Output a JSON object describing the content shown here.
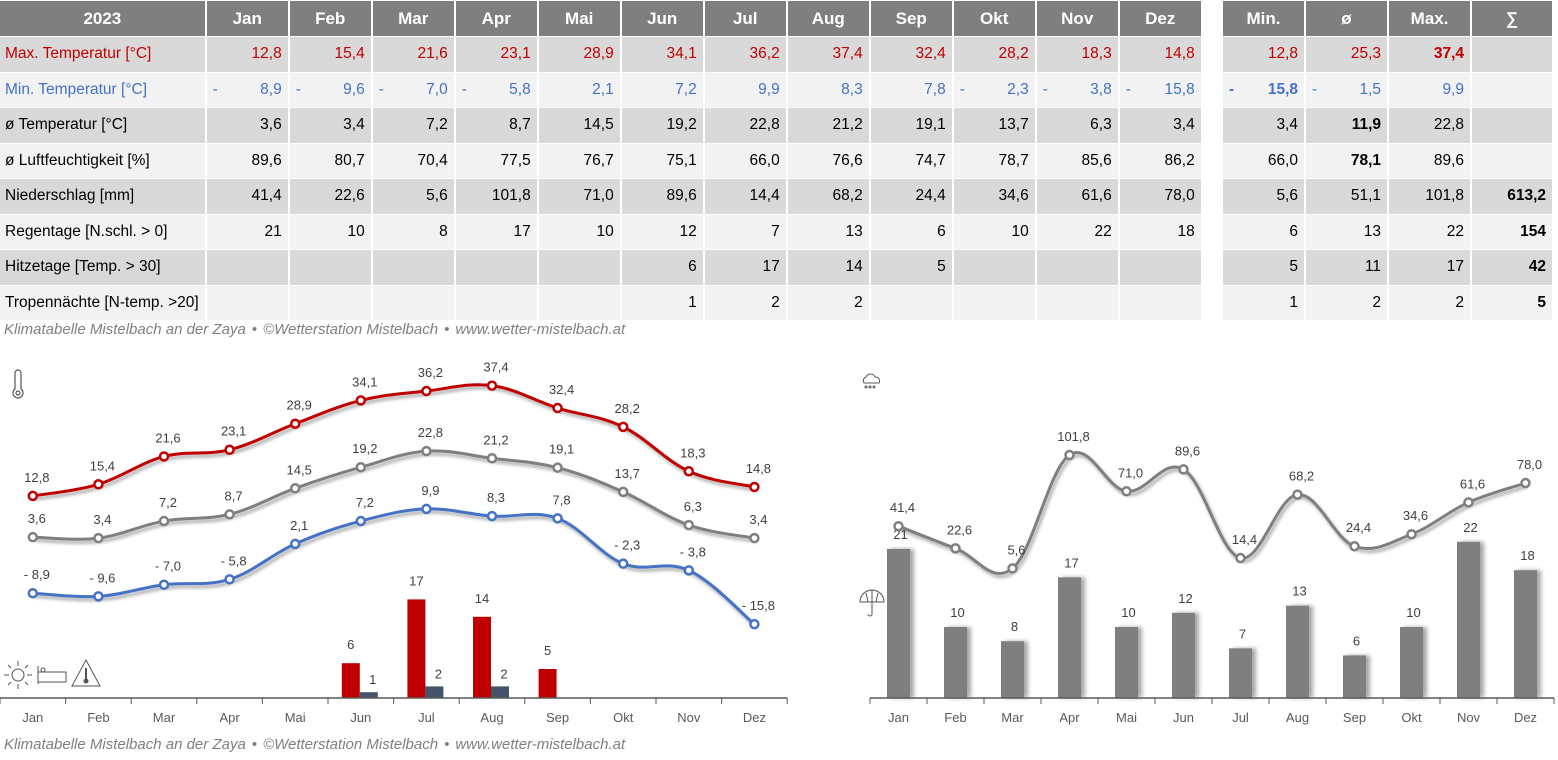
{
  "table": {
    "year": "2023",
    "months": [
      "Jan",
      "Feb",
      "Mar",
      "Apr",
      "Mai",
      "Jun",
      "Jul",
      "Aug",
      "Sep",
      "Okt",
      "Nov",
      "Dez"
    ],
    "summary_headers": [
      "Min.",
      "ø",
      "Max.",
      "∑"
    ],
    "rows": [
      {
        "label": "Max. Temperatur [°C]",
        "style": "red",
        "values": [
          "12,8",
          "15,4",
          "21,6",
          "23,1",
          "28,9",
          "34,1",
          "36,2",
          "37,4",
          "32,4",
          "28,2",
          "18,3",
          "14,8"
        ],
        "neg": [
          false,
          false,
          false,
          false,
          false,
          false,
          false,
          false,
          false,
          false,
          false,
          false
        ],
        "summary": [
          "12,8",
          "25,3",
          "37,4",
          ""
        ],
        "summary_neg": [
          false,
          false,
          false,
          false
        ],
        "summary_bold": [
          false,
          false,
          true,
          false
        ]
      },
      {
        "label": "Min. Temperatur [°C]",
        "style": "blue",
        "values": [
          "8,9",
          "9,6",
          "7,0",
          "5,8",
          "2,1",
          "7,2",
          "9,9",
          "8,3",
          "7,8",
          "2,3",
          "3,8",
          "15,8"
        ],
        "neg": [
          true,
          true,
          true,
          true,
          false,
          false,
          false,
          false,
          false,
          true,
          true,
          true
        ],
        "summary": [
          "15,8",
          "1,5",
          "9,9",
          ""
        ],
        "summary_neg": [
          true,
          true,
          false,
          false
        ],
        "summary_bold": [
          true,
          false,
          false,
          false
        ]
      },
      {
        "label": "ø Temperatur [°C]",
        "style": "",
        "values": [
          "3,6",
          "3,4",
          "7,2",
          "8,7",
          "14,5",
          "19,2",
          "22,8",
          "21,2",
          "19,1",
          "13,7",
          "6,3",
          "3,4"
        ],
        "neg": [
          false,
          false,
          false,
          false,
          false,
          false,
          false,
          false,
          false,
          false,
          false,
          false
        ],
        "summary": [
          "3,4",
          "11,9",
          "22,8",
          ""
        ],
        "summary_neg": [
          false,
          false,
          false,
          false
        ],
        "summary_bold": [
          false,
          true,
          false,
          false
        ]
      },
      {
        "label": "ø Luftfeuchtigkeit [%]",
        "style": "",
        "values": [
          "89,6",
          "80,7",
          "70,4",
          "77,5",
          "76,7",
          "75,1",
          "66,0",
          "76,6",
          "74,7",
          "78,7",
          "85,6",
          "86,2"
        ],
        "neg": [
          false,
          false,
          false,
          false,
          false,
          false,
          false,
          false,
          false,
          false,
          false,
          false
        ],
        "summary": [
          "66,0",
          "78,1",
          "89,6",
          ""
        ],
        "summary_neg": [
          false,
          false,
          false,
          false
        ],
        "summary_bold": [
          false,
          true,
          false,
          false
        ]
      },
      {
        "label": "Niederschlag [mm]",
        "style": "",
        "values": [
          "41,4",
          "22,6",
          "5,6",
          "101,8",
          "71,0",
          "89,6",
          "14,4",
          "68,2",
          "24,4",
          "34,6",
          "61,6",
          "78,0"
        ],
        "neg": [
          false,
          false,
          false,
          false,
          false,
          false,
          false,
          false,
          false,
          false,
          false,
          false
        ],
        "summary": [
          "5,6",
          "51,1",
          "101,8",
          "613,2"
        ],
        "summary_neg": [
          false,
          false,
          false,
          false
        ],
        "summary_bold": [
          false,
          false,
          false,
          true
        ]
      },
      {
        "label": "Regentage [N.schl. > 0]",
        "style": "",
        "values": [
          "21",
          "10",
          "8",
          "17",
          "10",
          "12",
          "7",
          "13",
          "6",
          "10",
          "22",
          "18"
        ],
        "neg": [
          false,
          false,
          false,
          false,
          false,
          false,
          false,
          false,
          false,
          false,
          false,
          false
        ],
        "summary": [
          "6",
          "13",
          "22",
          "154"
        ],
        "summary_neg": [
          false,
          false,
          false,
          false
        ],
        "summary_bold": [
          false,
          false,
          false,
          true
        ]
      },
      {
        "label": "Hitzetage [Temp. > 30]",
        "style": "",
        "values": [
          "",
          "",
          "",
          "",
          "",
          "6",
          "17",
          "14",
          "5",
          "",
          "",
          ""
        ],
        "neg": [
          false,
          false,
          false,
          false,
          false,
          false,
          false,
          false,
          false,
          false,
          false,
          false
        ],
        "summary": [
          "5",
          "11",
          "17",
          "42"
        ],
        "summary_neg": [
          false,
          false,
          false,
          false
        ],
        "summary_bold": [
          false,
          false,
          false,
          true
        ]
      },
      {
        "label": "Tropennächte [N-temp. >20]",
        "style": "",
        "values": [
          "",
          "",
          "",
          "",
          "",
          "1",
          "2",
          "2",
          "",
          "",
          "",
          ""
        ],
        "neg": [
          false,
          false,
          false,
          false,
          false,
          false,
          false,
          false,
          false,
          false,
          false,
          false
        ],
        "summary": [
          "1",
          "2",
          "2",
          "5"
        ],
        "summary_neg": [
          false,
          false,
          false,
          false
        ],
        "summary_bold": [
          false,
          false,
          false,
          true
        ]
      }
    ]
  },
  "footer": {
    "part1": "Klimatabelle Mistelbach an der Zaya",
    "part2": "©Wetterstation Mistelbach",
    "part3": "www.wetter-mistelbach.at",
    "separator": "•"
  },
  "colors": {
    "red": "#c00000",
    "blue": "#4472c4",
    "gray": "#7f7f7f",
    "navy": "#44546a"
  },
  "chart_data": [
    {
      "type": "line",
      "title": "",
      "icons": [
        "thermometer-icon",
        "sun-icon",
        "bed-icon",
        "heat-warning-icon"
      ],
      "categories": [
        "Jan",
        "Feb",
        "Mar",
        "Apr",
        "Mai",
        "Jun",
        "Jul",
        "Aug",
        "Sep",
        "Okt",
        "Nov",
        "Dez"
      ],
      "series": [
        {
          "name": "Max. Temperatur",
          "color": "#c00000",
          "values": [
            12.8,
            15.4,
            21.6,
            23.1,
            28.9,
            34.1,
            36.2,
            37.4,
            32.4,
            28.2,
            18.3,
            14.8
          ],
          "labels": [
            "12,8",
            "15,4",
            "21,6",
            "23,1",
            "28,9",
            "34,1",
            "36,2",
            "37,4",
            "32,4",
            "28,2",
            "18,3",
            "14,8"
          ]
        },
        {
          "name": "ø Temperatur",
          "color": "#7f7f7f",
          "values": [
            3.6,
            3.4,
            7.2,
            8.7,
            14.5,
            19.2,
            22.8,
            21.2,
            19.1,
            13.7,
            6.3,
            3.4
          ],
          "labels": [
            "3,6",
            "3,4",
            "7,2",
            "8,7",
            "14,5",
            "19,2",
            "22,8",
            "21,2",
            "19,1",
            "13,7",
            "6,3",
            "3,4"
          ]
        },
        {
          "name": "Min. Temperatur",
          "color": "#4472c4",
          "values": [
            -8.9,
            -9.6,
            -7.0,
            -5.8,
            2.1,
            7.2,
            9.9,
            8.3,
            7.8,
            -2.3,
            -3.8,
            -15.8
          ],
          "labels": [
            "- 8,9",
            "- 9,6",
            "- 7,0",
            "- 5,8",
            "2,1",
            "7,2",
            "9,9",
            "8,3",
            "7,8",
            "- 2,3",
            "- 3,8",
            "- 15,8"
          ]
        }
      ],
      "bar_series": [
        {
          "name": "Hitzetage",
          "color": "#c00000",
          "values": [
            0,
            0,
            0,
            0,
            0,
            6,
            17,
            14,
            5,
            0,
            0,
            0
          ],
          "labels": [
            "",
            "",
            "",
            "",
            "",
            "6",
            "17",
            "14",
            "5",
            "",
            "",
            ""
          ]
        },
        {
          "name": "Tropennächte",
          "color": "#44546a",
          "values": [
            0,
            0,
            0,
            0,
            0,
            1,
            2,
            2,
            0,
            0,
            0,
            0
          ],
          "labels": [
            "",
            "",
            "",
            "",
            "",
            "1",
            "2",
            "2",
            "",
            "",
            "",
            ""
          ]
        }
      ],
      "grid": false,
      "legend": "none"
    },
    {
      "type": "bar",
      "title": "",
      "icons": [
        "rain-cloud-icon",
        "umbrella-icon"
      ],
      "categories": [
        "Jan",
        "Feb",
        "Mar",
        "Apr",
        "Mai",
        "Jun",
        "Jul",
        "Aug",
        "Sep",
        "Okt",
        "Nov",
        "Dez"
      ],
      "series": [
        {
          "name": "Niederschlag",
          "kind": "line",
          "color": "#7f7f7f",
          "values": [
            41.4,
            22.6,
            5.6,
            101.8,
            71.0,
            89.6,
            14.4,
            68.2,
            24.4,
            34.6,
            61.6,
            78.0
          ],
          "labels": [
            "41,4",
            "22,6",
            "5,6",
            "101,8",
            "71,0",
            "89,6",
            "14,4",
            "68,2",
            "24,4",
            "34,6",
            "61,6",
            "78,0"
          ]
        },
        {
          "name": "Regentage",
          "kind": "bar",
          "color": "#7f7f7f",
          "values": [
            21,
            10,
            8,
            17,
            10,
            12,
            7,
            13,
            6,
            10,
            22,
            18
          ],
          "labels": [
            "21",
            "10",
            "8",
            "17",
            "10",
            "12",
            "7",
            "13",
            "6",
            "10",
            "22",
            "18"
          ]
        }
      ],
      "grid": false,
      "legend": "none"
    }
  ]
}
